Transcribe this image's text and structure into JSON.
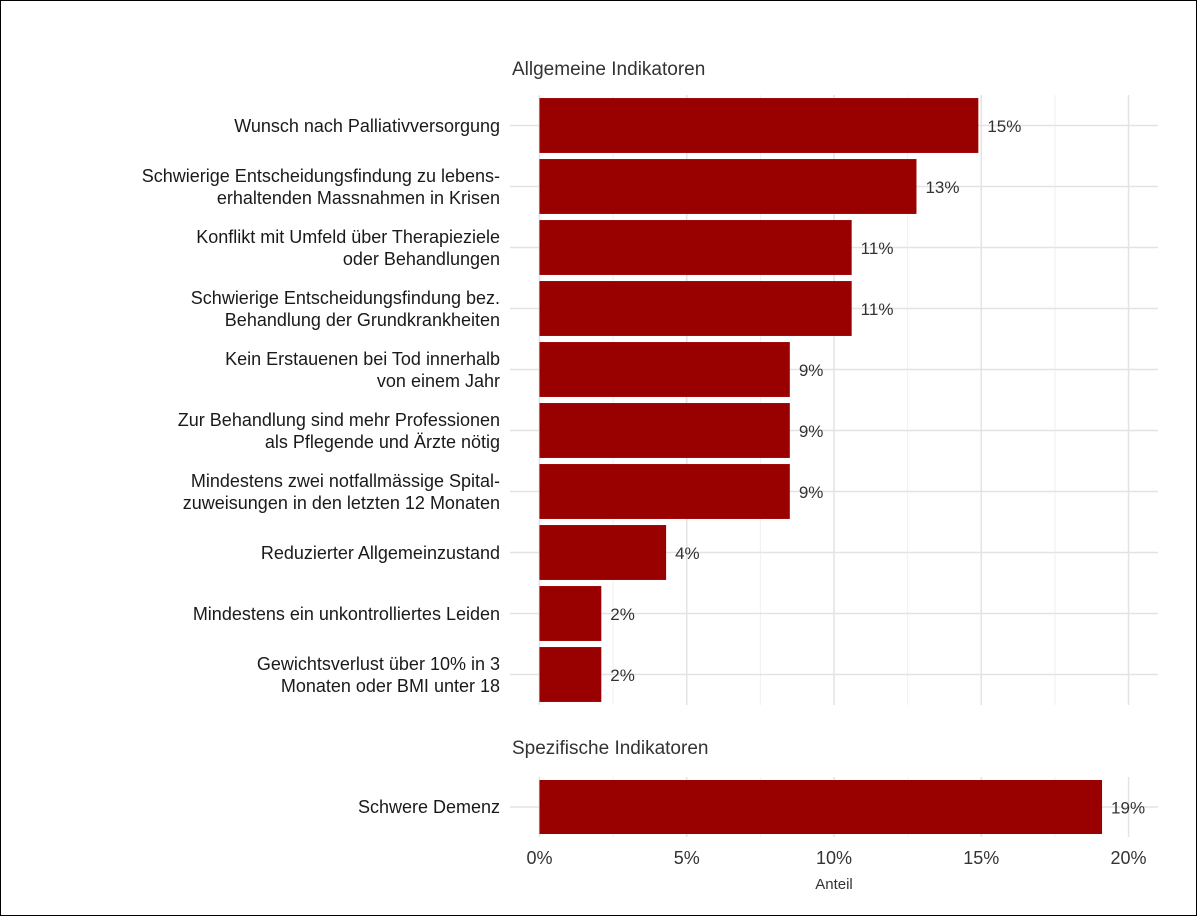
{
  "chart_data": [
    {
      "type": "bar",
      "orientation": "horizontal",
      "title": "Allgemeine Indikatoren",
      "categories": [
        "Wunsch nach Palliativversorgung",
        "Schwierige Entscheidungsfindung zu lebens-\nerhaltenden Massnahmen in Krisen",
        "Konflikt mit Umfeld über Therapieziele\noder Behandlungen",
        "Schwierige Entscheidungsfindung bez.\nBehandlung der Grundkrankheiten",
        "Kein Erstauenen bei Tod innerhalb\nvon einem Jahr",
        "Zur Behandlung sind mehr Professionen\nals Pflegende und Ärzte nötig",
        "Mindestens zwei notfallmässige Spital-\nzuweisungen in den letzten 12 Monaten",
        "Reduzierter Allgemeinzustand",
        "Mindestens ein unkontrolliertes Leiden",
        "Gewichtsverlust über 10% in 3\nMonaten oder BMI unter 18"
      ],
      "values": [
        14.9,
        12.8,
        10.6,
        10.6,
        8.5,
        8.5,
        8.5,
        4.3,
        2.1,
        2.1
      ],
      "value_labels": [
        "15%",
        "13%",
        "11%",
        "11%",
        "9%",
        "9%",
        "9%",
        "4%",
        "2%",
        "2%"
      ],
      "color": "#990000",
      "xlim": [
        -1,
        21
      ],
      "xticks": [
        {
          "value": 0,
          "label": "0%"
        },
        {
          "value": 5,
          "label": "5%"
        },
        {
          "value": 10,
          "label": "10%"
        },
        {
          "value": 15,
          "label": "15%"
        },
        {
          "value": 20,
          "label": "20%"
        }
      ],
      "x_minor_ticks": [
        2.5,
        7.5,
        12.5,
        17.5
      ],
      "grid": true
    },
    {
      "type": "bar",
      "orientation": "horizontal",
      "title": "Spezifische Indikatoren",
      "categories": [
        "Schwere Demenz"
      ],
      "values": [
        19.1
      ],
      "value_labels": [
        "19%"
      ],
      "color": "#990000",
      "xlim": [
        -1,
        21
      ],
      "xticks": [
        {
          "value": 0,
          "label": "0%"
        },
        {
          "value": 5,
          "label": "5%"
        },
        {
          "value": 10,
          "label": "10%"
        },
        {
          "value": 15,
          "label": "15%"
        },
        {
          "value": 20,
          "label": "20%"
        }
      ],
      "x_minor_ticks": [
        2.5,
        7.5,
        12.5,
        17.5
      ],
      "x_label": "Anteil",
      "grid": true
    }
  ]
}
